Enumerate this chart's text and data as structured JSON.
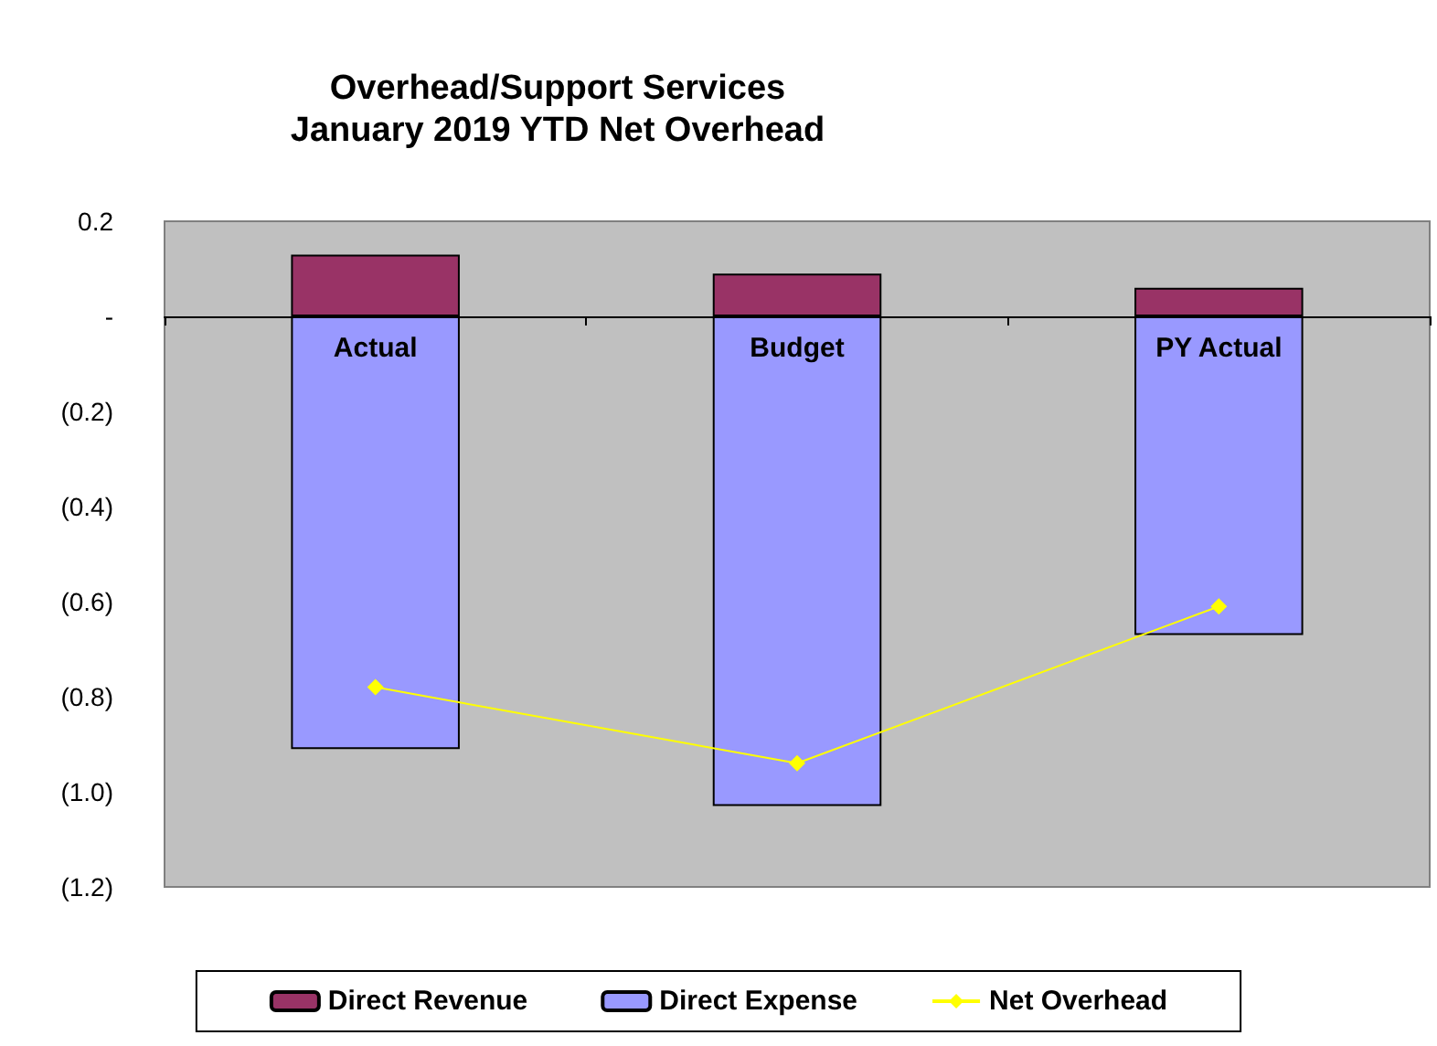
{
  "chart_data": {
    "type": "bar",
    "title": "Overhead/Support Services\nJanuary 2019 YTD Net Overhead",
    "categories": [
      "Actual",
      "Budget",
      "PY Actual"
    ],
    "stacked": true,
    "series": [
      {
        "name": "Direct Revenue",
        "color": "#993366",
        "values": [
          0.13,
          0.09,
          0.06
        ]
      },
      {
        "name": "Direct Expense",
        "color": "#9999ff",
        "values": [
          -0.91,
          -1.03,
          -0.67
        ]
      },
      {
        "name": "Net Overhead",
        "type": "line",
        "color": "#ffff00",
        "values": [
          -0.78,
          -0.94,
          -0.61
        ],
        "marker": "diamond"
      }
    ],
    "ylim": [
      -1.2,
      0.2
    ],
    "yticks": [
      {
        "value": -1.2,
        "label": "(1.2)"
      },
      {
        "value": -1.0,
        "label": "(1.0)"
      },
      {
        "value": -0.8,
        "label": "(0.8)"
      },
      {
        "value": -0.6,
        "label": "(0.6)"
      },
      {
        "value": -0.4,
        "label": "(0.4)"
      },
      {
        "value": -0.2,
        "label": "(0.2)"
      },
      {
        "value": 0,
        "label": "-"
      },
      {
        "value": 0.2,
        "label": "0.2"
      }
    ],
    "grid": false,
    "legend": "bottom"
  }
}
